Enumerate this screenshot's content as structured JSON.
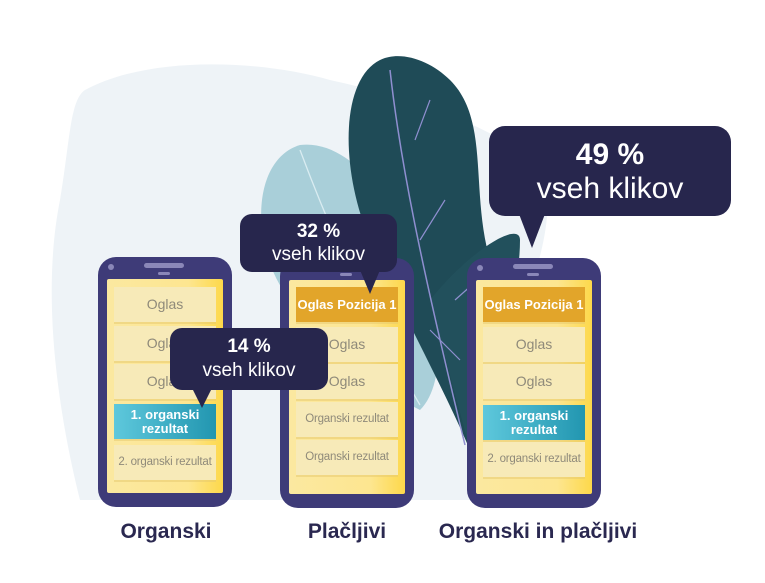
{
  "phones": [
    {
      "label": "Organski",
      "rows": [
        "Oglas",
        "Oglas",
        "Oglas",
        "1. organski rezultat",
        "2. organski rezultat"
      ],
      "bubble": {
        "percent": "14 %",
        "text": "vseh klikov"
      }
    },
    {
      "label": "Plačljivi",
      "rows": [
        "Oglas Pozicija 1",
        "Oglas",
        "Oglas",
        "Organski rezultat",
        "Organski rezultat"
      ],
      "bubble": {
        "percent": "32 %",
        "text": "vseh klikov"
      }
    },
    {
      "label": "Organski in plačljivi",
      "rows": [
        "Oglas Pozicija 1",
        "Oglas",
        "Oglas",
        "1. organski rezultat",
        "2. organski rezultat"
      ],
      "bubble": {
        "percent": "49 %",
        "text": "vseh klikov"
      }
    }
  ],
  "colors": {
    "phone": "#3e3b78",
    "bubble": "#27264d",
    "ad_highlight": "#e2a52a",
    "organic_highlight": "#2a9fb8",
    "leaf_dark": "#1f4b57",
    "leaf_light": "#a9cfd9"
  }
}
